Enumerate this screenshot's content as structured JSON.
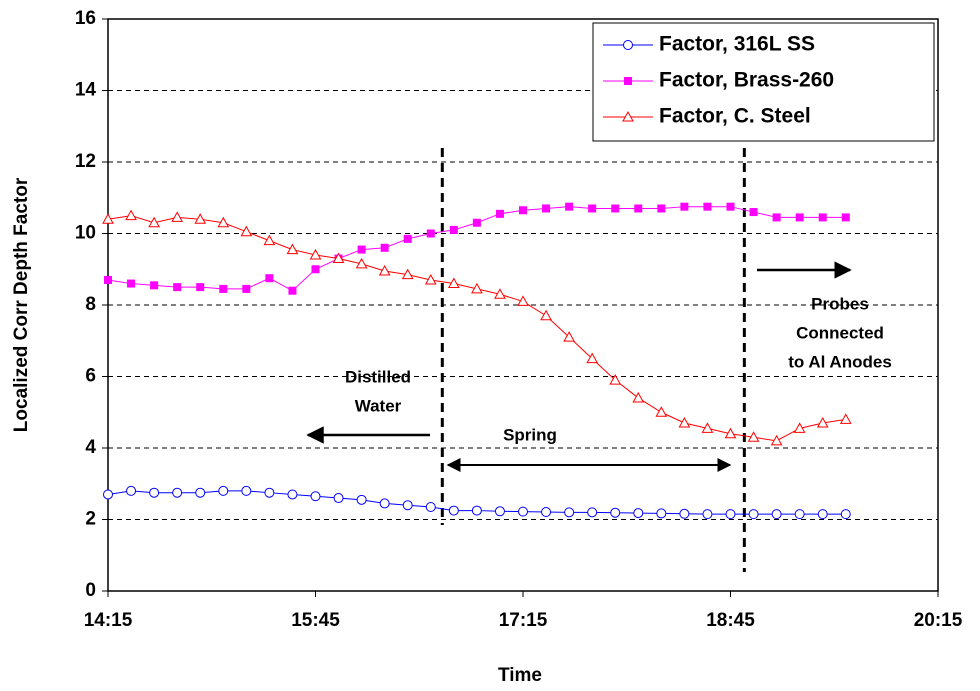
{
  "chart_data": {
    "type": "line",
    "xlabel": "Time",
    "ylabel": "Localized Corr Depth Factor",
    "x": [
      855,
      865,
      875,
      885,
      895,
      905,
      915,
      925,
      935,
      945,
      955,
      965,
      975,
      985,
      995,
      1005,
      1015,
      1025,
      1035,
      1045,
      1055,
      1065,
      1075,
      1085,
      1095,
      1105,
      1115,
      1125,
      1135,
      1145,
      1155,
      1165,
      1175
    ],
    "series": [
      {
        "name": "Factor, 316L SS",
        "color": "#0000ff",
        "marker": "circle",
        "values": [
          2.7,
          2.8,
          2.75,
          2.75,
          2.75,
          2.8,
          2.8,
          2.75,
          2.7,
          2.65,
          2.6,
          2.55,
          2.45,
          2.4,
          2.35,
          2.25,
          2.25,
          2.23,
          2.22,
          2.21,
          2.2,
          2.2,
          2.19,
          2.18,
          2.17,
          2.16,
          2.15,
          2.15,
          2.15,
          2.15,
          2.15,
          2.15,
          2.15
        ]
      },
      {
        "name": "Factor, Brass-260",
        "color": "#ff00ff",
        "marker": "square",
        "values": [
          8.7,
          8.6,
          8.55,
          8.5,
          8.5,
          8.45,
          8.45,
          8.75,
          8.4,
          9.0,
          9.3,
          9.55,
          9.6,
          9.85,
          10.0,
          10.1,
          10.3,
          10.55,
          10.65,
          10.7,
          10.75,
          10.7,
          10.7,
          10.7,
          10.7,
          10.75,
          10.75,
          10.75,
          10.6,
          10.45,
          10.45,
          10.45,
          10.45
        ]
      },
      {
        "name": "Factor, C. Steel",
        "color": "#ff0000",
        "marker": "triangle",
        "values": [
          10.4,
          10.5,
          10.3,
          10.45,
          10.4,
          10.3,
          10.05,
          9.8,
          9.55,
          9.4,
          9.3,
          9.15,
          8.95,
          8.85,
          8.7,
          8.6,
          8.45,
          8.3,
          8.1,
          7.7,
          7.1,
          6.5,
          5.9,
          5.4,
          5.0,
          4.7,
          4.55,
          4.4,
          4.3,
          4.2,
          4.55,
          4.7,
          4.8
        ]
      }
    ],
    "xlim": [
      855,
      1215
    ],
    "xticks": [
      {
        "value": 855,
        "label": "14:15"
      },
      {
        "value": 945,
        "label": "15:45"
      },
      {
        "value": 1035,
        "label": "17:15"
      },
      {
        "value": 1125,
        "label": "18:45"
      },
      {
        "value": 1215,
        "label": "20:15"
      }
    ],
    "ylim": [
      0,
      16
    ],
    "yticks": [
      0,
      2,
      4,
      6,
      8,
      10,
      12,
      14,
      16
    ],
    "grid": true,
    "legend": "upper right",
    "vlines": [
      1000,
      1131
    ],
    "annotations": [
      {
        "lines": [
          "Distilled",
          "Water"
        ]
      },
      {
        "lines": [
          "Spring"
        ]
      },
      {
        "lines": [
          "Probes",
          "Connected",
          "to Al Anodes"
        ]
      }
    ]
  }
}
